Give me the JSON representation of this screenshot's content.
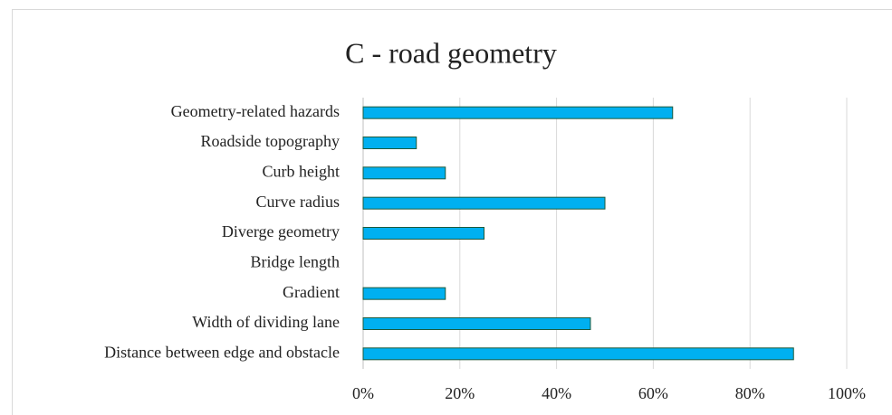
{
  "chart_data": {
    "type": "bar",
    "orientation": "horizontal",
    "title": "C - road geometry",
    "categories": [
      "Geometry-related hazards",
      "Roadside topography",
      "Curb height",
      "Curve radius",
      "Diverge geometry",
      "Bridge length",
      "Gradient",
      "Width of dividing lane",
      "Distance between edge and obstacle"
    ],
    "values": [
      64,
      11,
      17,
      50,
      25,
      0,
      17,
      47,
      89
    ],
    "color": "#00b0f0",
    "edge_color": "#1e5a3c",
    "xlim": [
      0,
      100
    ],
    "xticks": [
      {
        "value": 0,
        "label": "0%"
      },
      {
        "value": 20,
        "label": "20%"
      },
      {
        "value": 40,
        "label": "40%"
      },
      {
        "value": 60,
        "label": "60%"
      },
      {
        "value": 80,
        "label": "80%"
      },
      {
        "value": 100,
        "label": "100%"
      }
    ],
    "grid": true
  }
}
